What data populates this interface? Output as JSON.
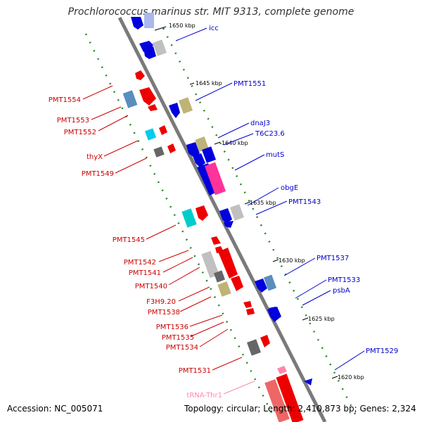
{
  "title": "Prochlorococcus marinus str. MIT 9313, complete genome",
  "accession": "Accession: NC_005071",
  "topology": "Topology: circular; Length: 2,410,873 bp; Genes: 2,324",
  "colors": {
    "forward_gene": "#ee0000",
    "reverse_gene": "#0000dd",
    "label_forward": "#cc0000",
    "label_reverse": "#0000cc",
    "backbone": "#888888",
    "tick": "#228822",
    "trna": "#ff88aa"
  },
  "scale_labels": [
    "1650 kbp",
    "1645 kbp",
    "1640 kbp",
    "1635 kbp",
    "1630 kbp",
    "1625 kbp",
    "1620 kbp"
  ],
  "gene_labels_right": [
    "icc",
    "PMT1551",
    "dnaJ3",
    "T6C23.6",
    "mutS",
    "obgE",
    "PMT1543",
    "PMT1537",
    "PMT1533",
    "psbA",
    "PMT1529"
  ],
  "gene_labels_left": [
    "PMT1554",
    "PMT1553",
    "PMT1552",
    "thyX",
    "PMT1549",
    "PMT1545",
    "PMT1542",
    "PMT1541",
    "PMT1540",
    "F3H9.20",
    "PMT1538",
    "PMT1536",
    "PMT1535",
    "PMT1534",
    "PMT1531",
    "tRNA-Thr1"
  ]
}
